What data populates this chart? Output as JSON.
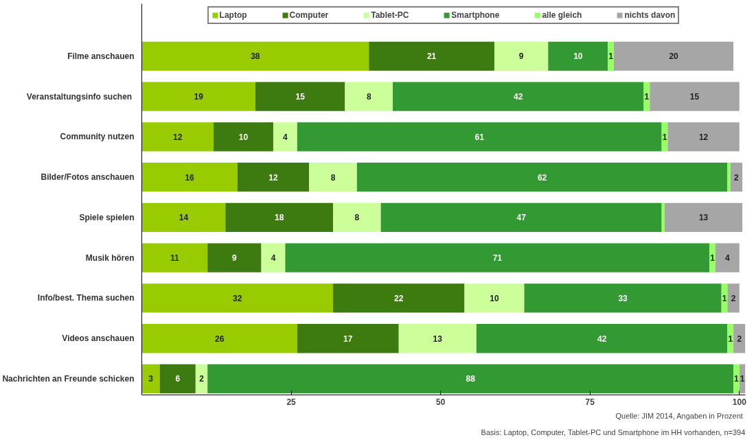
{
  "chart_data": {
    "type": "bar",
    "orientation": "horizontal",
    "stacked": true,
    "legend": "top",
    "grid": false,
    "categories": [
      "Filme anschauen",
      "Veranstaltungsinfo  suchen",
      "Community nutzen",
      "Bilder/Fotos anschauen",
      "Spiele spielen",
      "Musik hören",
      "Info/best. Thema suchen",
      "Videos anschauen",
      "Nachrichten an Freunde schicken"
    ],
    "xlim": [
      0,
      101
    ],
    "xticks": [
      25,
      50,
      75,
      100
    ],
    "series": [
      {
        "name": "Laptop",
        "color": "#99cc00",
        "values": [
          38,
          19,
          12,
          16,
          14,
          11,
          32,
          26,
          3
        ],
        "value_labels": [
          "38",
          "19",
          "12",
          "16",
          "14",
          "11",
          "32",
          "26",
          "3"
        ]
      },
      {
        "name": "Computer",
        "color": "#3d7a0f",
        "values": [
          21,
          15,
          10,
          12,
          18,
          9,
          22,
          17,
          6
        ],
        "value_labels": [
          "21",
          "15",
          "10",
          "12",
          "18",
          "9",
          "22",
          "17",
          "6"
        ]
      },
      {
        "name": "Tablet-PC",
        "color": "#ccff99",
        "values": [
          9,
          8,
          4,
          8,
          8,
          4,
          10,
          13,
          2
        ],
        "value_labels": [
          "9",
          "8",
          "4",
          "8",
          "8",
          "4",
          "10",
          "13",
          "2"
        ]
      },
      {
        "name": "Smartphone",
        "color": "#339933",
        "values": [
          10,
          42,
          61,
          62,
          47,
          71,
          33,
          42,
          88
        ],
        "value_labels": [
          "10",
          "42",
          "61",
          "62",
          "47",
          "71",
          "33",
          "42",
          "88"
        ]
      },
      {
        "name": "alle gleich",
        "color": "#99ff66",
        "values": [
          1,
          1,
          1,
          0.5,
          0.5,
          1,
          1,
          1,
          1
        ],
        "value_labels": [
          "1",
          "1",
          "1",
          null,
          null,
          "1",
          "1",
          "1",
          "1"
        ]
      },
      {
        "name": "nichts davon",
        "color": "#a6a6a6",
        "values": [
          20,
          15,
          12,
          2,
          13,
          4,
          2,
          2,
          1
        ],
        "value_labels": [
          "20",
          "15",
          "12",
          "2",
          "13",
          "4",
          "2",
          "2",
          "1"
        ]
      }
    ],
    "annotations": [
      "Quelle: JIM 2014,  Angaben in Prozent",
      "Basis: Laptop, Computer, Tablet-PC und Smartphone im HH vorhanden, n=394"
    ]
  }
}
